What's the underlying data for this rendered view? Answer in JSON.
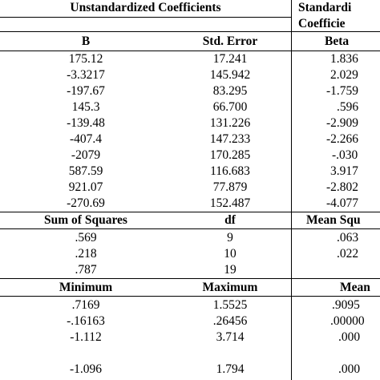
{
  "header": {
    "unstandardized": "Unstandardized Coefficients",
    "standardized_line1": "Standardi",
    "standardized_line2": "Coefficie"
  },
  "coefficients": {
    "columns": [
      "B",
      "Std. Error",
      "Beta"
    ],
    "rows": [
      [
        "175.12",
        "17.241",
        "1.836"
      ],
      [
        "-3.3217",
        "145.942",
        "2.029"
      ],
      [
        "-197.67",
        "83.295",
        "-1.759"
      ],
      [
        "145.3",
        "66.700",
        ".596"
      ],
      [
        "-139.48",
        "131.226",
        "-2.909"
      ],
      [
        "-407.4",
        "147.233",
        "-2.266"
      ],
      [
        "-2079",
        "170.285",
        "-.030"
      ],
      [
        "587.59",
        "116.683",
        "3.917"
      ],
      [
        "921.07",
        "77.879",
        "-2.802"
      ],
      [
        "-270.69",
        "152.487",
        "-4.077"
      ]
    ]
  },
  "anova": {
    "columns": [
      "Sum of Squares",
      "df",
      "Mean Squ"
    ],
    "rows": [
      [
        ".569",
        "9",
        ".063"
      ],
      [
        ".218",
        "10",
        ".022"
      ],
      [
        ".787",
        "19",
        ""
      ]
    ]
  },
  "descriptives": {
    "columns": [
      "Minimum",
      "Maximum",
      "Mean"
    ],
    "rows": [
      [
        ".7169",
        "1.5525",
        ".9095"
      ],
      [
        "-.16163",
        ".26456",
        ".00000"
      ],
      [
        "-1.112",
        "3.714",
        ".000"
      ],
      [
        "-1.096",
        "1.794",
        ".000"
      ]
    ]
  }
}
